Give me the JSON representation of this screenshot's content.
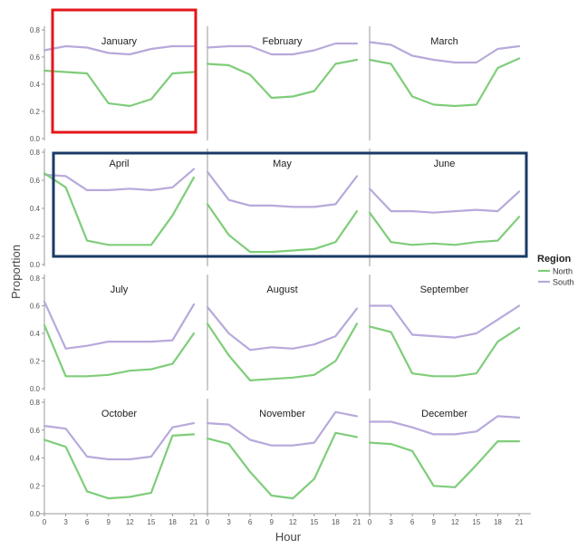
{
  "chart_data": {
    "type": "line",
    "xlabel": "Hour",
    "ylabel": "Proportion",
    "x": [
      0,
      3,
      6,
      9,
      12,
      15,
      18,
      21
    ],
    "x_ticks": [
      "0",
      "3",
      "6",
      "9",
      "12",
      "15",
      "18",
      "21"
    ],
    "ylim": [
      0,
      0.8
    ],
    "y_ticks": [
      "0.0",
      "0.2",
      "0.4",
      "0.6",
      "0.8"
    ],
    "grid": false,
    "legend": {
      "title": "Region",
      "placement": "right",
      "entries": [
        {
          "name": "North",
          "color": "#7fcd7a"
        },
        {
          "name": "South",
          "color": "#b8a9db"
        }
      ]
    },
    "highlights": [
      {
        "panels": [
          "January"
        ],
        "color": "#e3161b"
      },
      {
        "panels": [
          "April",
          "May",
          "June"
        ],
        "color": "#1a3a66"
      }
    ],
    "panels": [
      {
        "title": "January",
        "series": [
          {
            "name": "North",
            "values": [
              0.5,
              0.49,
              0.48,
              0.26,
              0.24,
              0.29,
              0.48,
              0.49
            ]
          },
          {
            "name": "South",
            "values": [
              0.65,
              0.68,
              0.67,
              0.63,
              0.62,
              0.66,
              0.68,
              0.68
            ]
          }
        ]
      },
      {
        "title": "February",
        "series": [
          {
            "name": "North",
            "values": [
              0.55,
              0.54,
              0.47,
              0.3,
              0.31,
              0.35,
              0.55,
              0.58
            ]
          },
          {
            "name": "South",
            "values": [
              0.67,
              0.68,
              0.68,
              0.62,
              0.62,
              0.65,
              0.7,
              0.7
            ]
          }
        ]
      },
      {
        "title": "March",
        "series": [
          {
            "name": "North",
            "values": [
              0.58,
              0.55,
              0.31,
              0.25,
              0.24,
              0.25,
              0.52,
              0.59
            ]
          },
          {
            "name": "South",
            "values": [
              0.71,
              0.69,
              0.61,
              0.58,
              0.56,
              0.56,
              0.66,
              0.68
            ]
          }
        ]
      },
      {
        "title": "April",
        "series": [
          {
            "name": "North",
            "values": [
              0.65,
              0.55,
              0.17,
              0.14,
              0.14,
              0.14,
              0.35,
              0.62
            ]
          },
          {
            "name": "South",
            "values": [
              0.64,
              0.63,
              0.53,
              0.53,
              0.54,
              0.53,
              0.55,
              0.68
            ]
          }
        ]
      },
      {
        "title": "May",
        "series": [
          {
            "name": "North",
            "values": [
              0.43,
              0.21,
              0.09,
              0.09,
              0.1,
              0.11,
              0.16,
              0.38
            ]
          },
          {
            "name": "South",
            "values": [
              0.66,
              0.46,
              0.42,
              0.42,
              0.41,
              0.41,
              0.43,
              0.63
            ]
          }
        ]
      },
      {
        "title": "June",
        "series": [
          {
            "name": "North",
            "values": [
              0.37,
              0.16,
              0.14,
              0.15,
              0.14,
              0.16,
              0.17,
              0.34
            ]
          },
          {
            "name": "South",
            "values": [
              0.54,
              0.38,
              0.38,
              0.37,
              0.38,
              0.39,
              0.38,
              0.52
            ]
          }
        ]
      },
      {
        "title": "July",
        "series": [
          {
            "name": "North",
            "values": [
              0.46,
              0.09,
              0.09,
              0.1,
              0.13,
              0.14,
              0.18,
              0.4
            ]
          },
          {
            "name": "South",
            "values": [
              0.63,
              0.29,
              0.31,
              0.34,
              0.34,
              0.34,
              0.35,
              0.61
            ]
          }
        ]
      },
      {
        "title": "August",
        "series": [
          {
            "name": "North",
            "values": [
              0.47,
              0.24,
              0.06,
              0.07,
              0.08,
              0.1,
              0.2,
              0.47
            ]
          },
          {
            "name": "South",
            "values": [
              0.59,
              0.4,
              0.28,
              0.3,
              0.29,
              0.32,
              0.38,
              0.58
            ]
          }
        ]
      },
      {
        "title": "September",
        "series": [
          {
            "name": "North",
            "values": [
              0.45,
              0.41,
              0.11,
              0.09,
              0.09,
              0.11,
              0.34,
              0.44
            ]
          },
          {
            "name": "South",
            "values": [
              0.6,
              0.6,
              0.39,
              0.38,
              0.37,
              0.4,
              0.5,
              0.6
            ]
          }
        ]
      },
      {
        "title": "October",
        "series": [
          {
            "name": "North",
            "values": [
              0.53,
              0.48,
              0.16,
              0.11,
              0.12,
              0.15,
              0.56,
              0.57
            ]
          },
          {
            "name": "South",
            "values": [
              0.63,
              0.61,
              0.41,
              0.39,
              0.39,
              0.41,
              0.62,
              0.65
            ]
          }
        ]
      },
      {
        "title": "November",
        "series": [
          {
            "name": "North",
            "values": [
              0.54,
              0.5,
              0.3,
              0.13,
              0.11,
              0.25,
              0.58,
              0.55
            ]
          },
          {
            "name": "South",
            "values": [
              0.65,
              0.64,
              0.53,
              0.49,
              0.49,
              0.51,
              0.73,
              0.7
            ]
          }
        ]
      },
      {
        "title": "December",
        "series": [
          {
            "name": "North",
            "values": [
              0.51,
              0.5,
              0.45,
              0.2,
              0.19,
              0.35,
              0.52,
              0.52
            ]
          },
          {
            "name": "South",
            "values": [
              0.66,
              0.66,
              0.62,
              0.57,
              0.57,
              0.59,
              0.7,
              0.69
            ]
          }
        ]
      }
    ]
  }
}
